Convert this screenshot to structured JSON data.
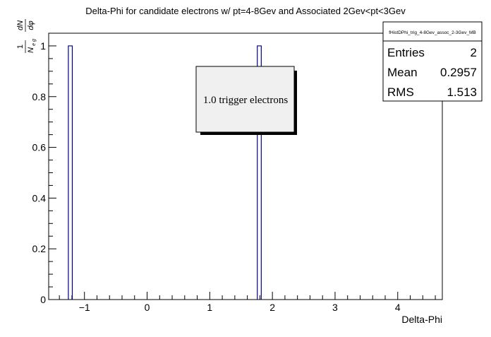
{
  "chart_data": {
    "type": "bar",
    "title": "Delta-Phi for candidate electrons w/ pt=4-8Gev and Associated 2Gev<pt<3Gev",
    "xlabel": "Delta-Phi",
    "ylabel_parts": {
      "frac1_num": "1",
      "frac1_den_base": "N",
      "frac1_den_sub": "e g",
      "frac2_num": "dN",
      "frac2_den": "dφ"
    },
    "xlim": [
      -1.571,
      4.712
    ],
    "ylim": [
      0,
      1.05
    ],
    "x_ticks": [
      {
        "value": -1,
        "label": "−1"
      },
      {
        "value": 0,
        "label": "0"
      },
      {
        "value": 1,
        "label": "1"
      },
      {
        "value": 2,
        "label": "2"
      },
      {
        "value": 3,
        "label": "3"
      },
      {
        "value": 4,
        "label": "4"
      }
    ],
    "y_ticks": [
      {
        "value": 0,
        "label": "0"
      },
      {
        "value": 0.2,
        "label": "0.2"
      },
      {
        "value": 0.4,
        "label": "0.4"
      },
      {
        "value": 0.6,
        "label": "0.6"
      },
      {
        "value": 0.8,
        "label": "0.8"
      },
      {
        "value": 1,
        "label": "1"
      }
    ],
    "bins": [
      {
        "x_low": -1.257,
        "x_high": -1.194,
        "value": 1
      },
      {
        "x_low": 1.759,
        "x_high": 1.822,
        "value": 1
      }
    ],
    "line_color": "#000080",
    "annotation": "1.0 trigger electrons",
    "stats": {
      "name": "fHistDPhi_trig_4-8Gev_assoc_2-3Gev_MB",
      "rows": [
        {
          "label": "Entries",
          "value": "2"
        },
        {
          "label": "Mean",
          "value": "0.2957"
        },
        {
          "label": "RMS",
          "value": "1.513"
        }
      ]
    }
  }
}
